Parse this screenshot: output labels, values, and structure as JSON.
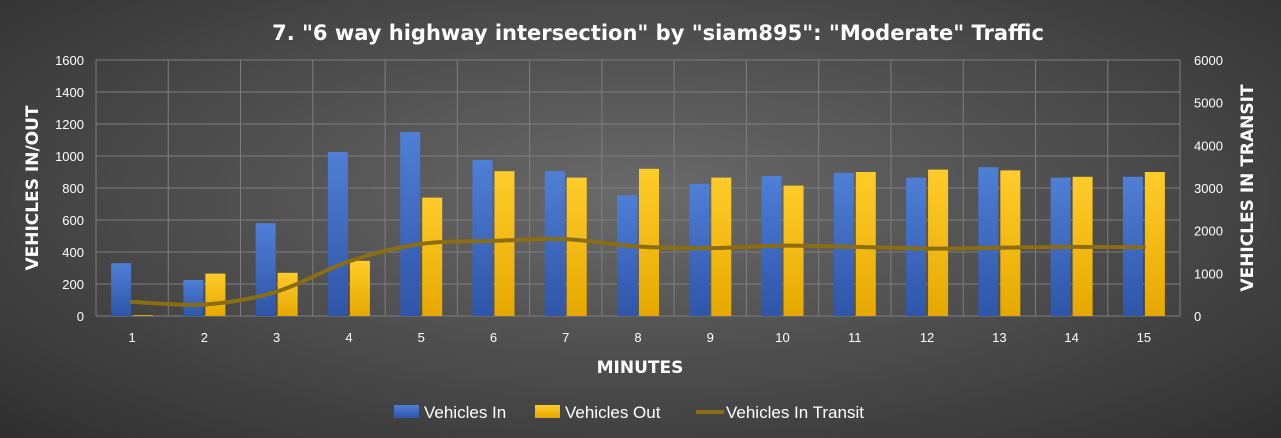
{
  "chart_data": {
    "type": "bar",
    "title": "7. \"6 way highway intersection\" by \"siam895\": \"Moderate\" Traffic",
    "xlabel": "MINUTES",
    "ylabel": "VEHICLES IN/OUT",
    "y2label": "VEHICLES IN TRANSIT",
    "categories": [
      "1",
      "2",
      "3",
      "4",
      "5",
      "6",
      "7",
      "8",
      "9",
      "10",
      "11",
      "12",
      "13",
      "14",
      "15"
    ],
    "ylim": [
      0,
      1600
    ],
    "yticks": [
      0,
      200,
      400,
      600,
      800,
      1000,
      1200,
      1400,
      1600
    ],
    "y2lim": [
      0,
      6000
    ],
    "y2ticks": [
      0,
      1000,
      2000,
      3000,
      4000,
      5000,
      6000
    ],
    "grid": true,
    "legend_position": "bottom",
    "series": [
      {
        "name": "Vehicles In",
        "kind": "bar",
        "axis": "left",
        "color": "#4472c4",
        "values": [
          330,
          225,
          580,
          1025,
          1150,
          975,
          905,
          755,
          825,
          875,
          895,
          865,
          930,
          865,
          870
        ]
      },
      {
        "name": "Vehicles Out",
        "kind": "bar",
        "axis": "left",
        "color": "#ffc000",
        "values": [
          5,
          265,
          270,
          345,
          740,
          905,
          865,
          920,
          865,
          815,
          900,
          915,
          910,
          870,
          900
        ]
      },
      {
        "name": "Vehicles In Transit",
        "kind": "line",
        "axis": "right",
        "color": "#8b6d14",
        "values": [
          330,
          270,
          570,
          1280,
          1690,
          1760,
          1800,
          1630,
          1590,
          1650,
          1620,
          1580,
          1600,
          1620,
          1610
        ]
      }
    ]
  }
}
